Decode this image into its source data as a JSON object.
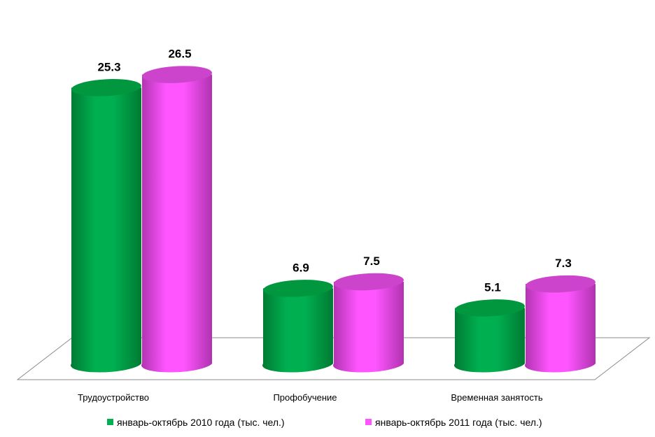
{
  "chart_data": {
    "type": "bar",
    "style": "3d-cylinder",
    "categories": [
      "Трудоустройство",
      "Профобучение",
      "Временная занятость"
    ],
    "series": [
      {
        "name": "январь-октябрь 2010 года (тыс. чел.)",
        "values": [
          25.3,
          6.9,
          5.1
        ],
        "value_labels": [
          "25.3",
          "6.9",
          "5.1"
        ],
        "color": "#00b050",
        "top_color": "#00973f",
        "shade_color": "#007a33"
      },
      {
        "name": "январь-октябрь 2011 года (тыс. чел.)",
        "values": [
          26.5,
          7.5,
          7.3
        ],
        "value_labels": [
          "26.5",
          "7.5",
          "7.3"
        ],
        "color": "#ff55ff",
        "top_color": "#cc44cc",
        "shade_color": "#b033b0"
      }
    ],
    "ylim": [
      0,
      30
    ],
    "grid": false,
    "legend_position": "bottom"
  }
}
